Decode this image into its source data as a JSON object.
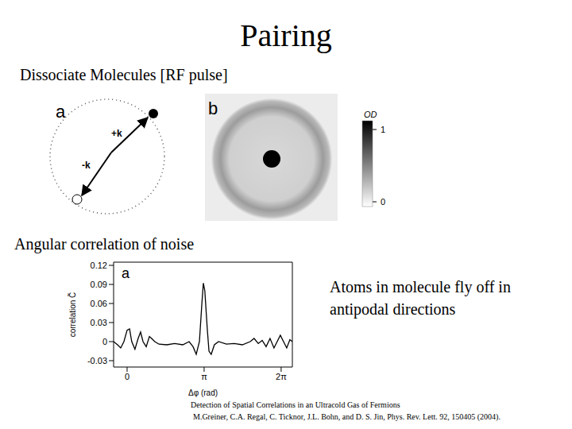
{
  "title": "Pairing",
  "subtitle": "Dissociate Molecules [RF pulse]",
  "diagram": {
    "panel": "a",
    "labels": [
      "+k",
      "-k"
    ]
  },
  "image": {
    "panel": "b",
    "colorbar": {
      "label": "OD",
      "range": [
        0,
        1
      ],
      "ticks": [
        0,
        1
      ]
    }
  },
  "section": "Angular correlation of noise",
  "caption": [
    "Atoms in molecule fly off in",
    "antipodal directions"
  ],
  "reference": [
    "Detection  of Spatial Correlations in an Ultracold Gas of Fermions",
    "M.Greiner, C.A. Regal, C. Ticknor, J.L. Bohn, and D. S. Jin, Phys. Rev. Lett. 92, 150405 (2004)."
  ],
  "chart_data": {
    "type": "line",
    "annotation": "a",
    "x_label": "Δφ (rad)",
    "y_label": "correlation  C̃",
    "color": "#000000",
    "x": [
      -0.55,
      -0.39,
      -0.26,
      -0.13,
      0,
      0.1,
      0.19,
      0.32,
      0.45,
      0.55,
      0.65,
      0.78,
      0.91,
      1.0,
      1.13,
      1.3,
      1.62,
      1.94,
      2.27,
      2.53,
      2.69,
      2.82,
      2.95,
      3.05,
      3.11,
      3.17,
      3.27,
      3.34,
      3.43,
      3.56,
      3.73,
      4.05,
      4.37,
      4.7,
      5.02,
      5.18,
      5.35,
      5.51,
      5.67,
      5.83,
      5.99,
      6.12,
      6.25,
      6.38,
      6.51,
      6.64,
      6.74
    ],
    "values": [
      0.0,
      -0.005,
      -0.01,
      0.0,
      0.018,
      0.02,
      0.0,
      -0.012,
      0.005,
      0.015,
      0.0,
      -0.008,
      0.008,
      0.005,
      0.0,
      -0.004,
      -0.005,
      -0.003,
      -0.005,
      0.0,
      -0.008,
      -0.02,
      0.0,
      0.06,
      0.092,
      0.08,
      0.02,
      -0.015,
      -0.02,
      -0.005,
      0.0,
      -0.004,
      -0.003,
      -0.005,
      0.0,
      0.005,
      -0.003,
      0.002,
      -0.008,
      0.005,
      -0.01,
      0.0,
      0.01,
      0.0,
      -0.01,
      0.003,
      0.0
    ],
    "xlim": [
      -0.55,
      6.74
    ],
    "ylim": [
      -0.04,
      0.125
    ],
    "xticks": [
      0,
      {
        "value": 3.1416,
        "label": "π"
      },
      {
        "value": 6.2832,
        "label": "2π"
      }
    ],
    "yticks": [
      -0.03,
      0,
      0.03,
      0.06,
      0.09,
      0.12
    ]
  }
}
